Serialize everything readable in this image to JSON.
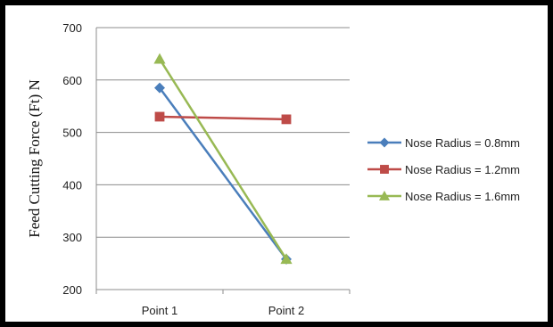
{
  "chart_data": {
    "type": "line",
    "categories": [
      "Point 1",
      "Point 2"
    ],
    "ylabel": "Feed Cutting Force (Ft) N",
    "xlabel": "",
    "ylim": [
      200,
      700
    ],
    "yticks": [
      200,
      300,
      400,
      500,
      600,
      700
    ],
    "grid": "horizontal",
    "legend_position": "right",
    "series": [
      {
        "name": "Nose Radius = 0.8mm",
        "values": [
          585,
          258
        ],
        "color": "#4a7ebb",
        "marker": "diamond"
      },
      {
        "name": "Nose Radius = 1.2mm",
        "values": [
          530,
          525
        ],
        "color": "#be4b48",
        "marker": "square"
      },
      {
        "name": "Nose Radius = 1.6mm",
        "values": [
          640,
          258
        ],
        "color": "#98b954",
        "marker": "triangle"
      }
    ]
  }
}
